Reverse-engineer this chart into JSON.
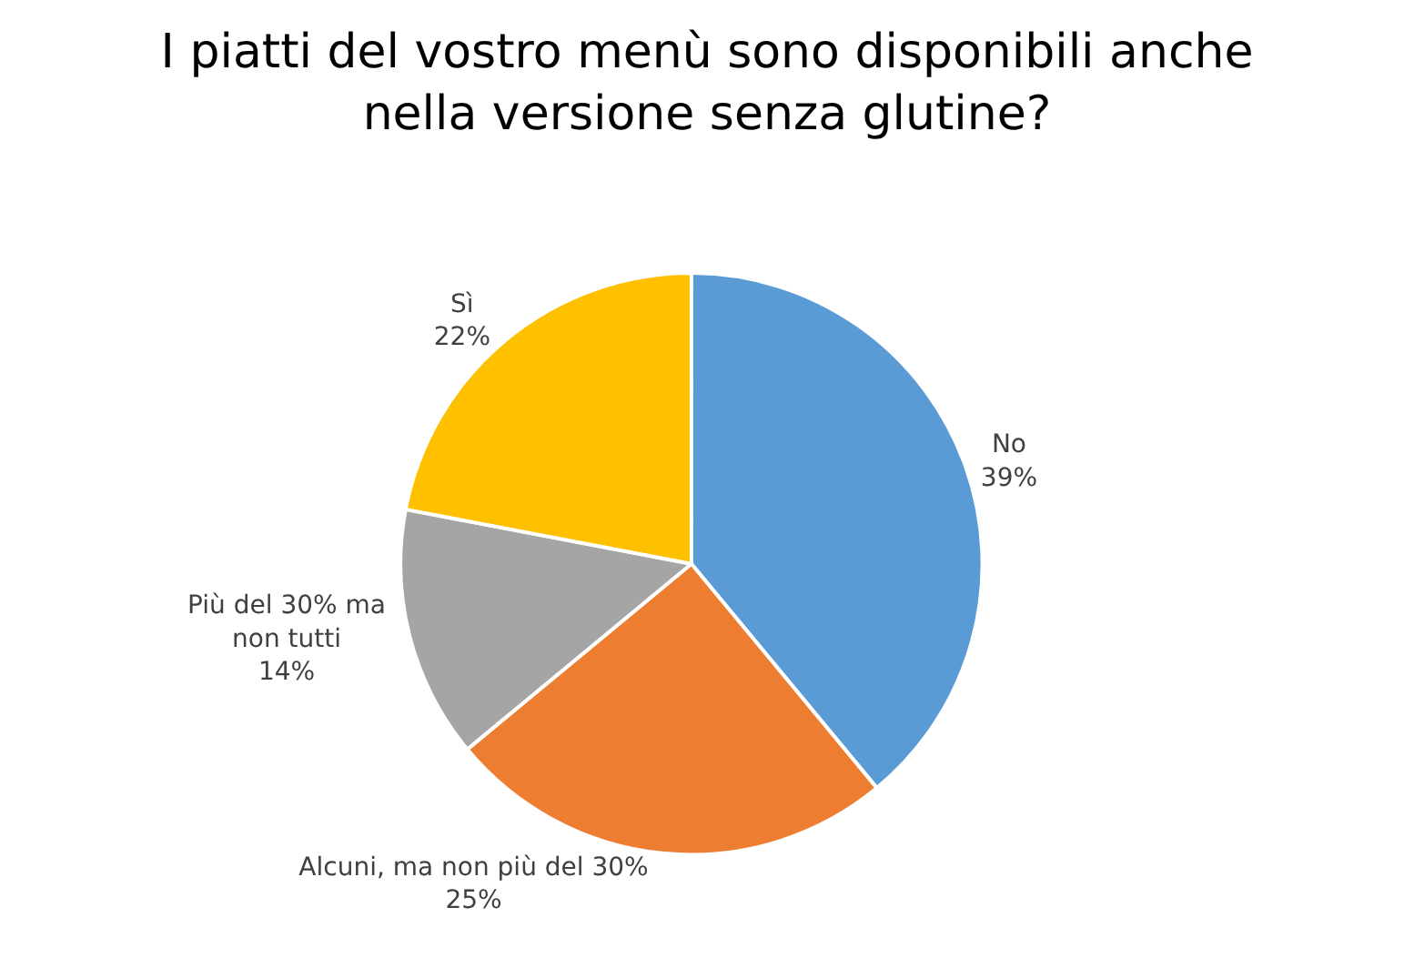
{
  "chart_data": {
    "type": "pie",
    "title": "I piatti del vostro menù sono disponibili anche nella versione senza glutine?",
    "categories": [
      "No",
      "Alcuni, ma non più del 30%",
      "Più del 30% ma non tutti",
      "Sì"
    ],
    "values": [
      39,
      25,
      14,
      22
    ],
    "colors": [
      "#5b9bd5",
      "#ed7d31",
      "#a5a5a5",
      "#ffc000"
    ],
    "value_labels": [
      "39%",
      "25%",
      "14%",
      "22%"
    ],
    "legend": false
  }
}
